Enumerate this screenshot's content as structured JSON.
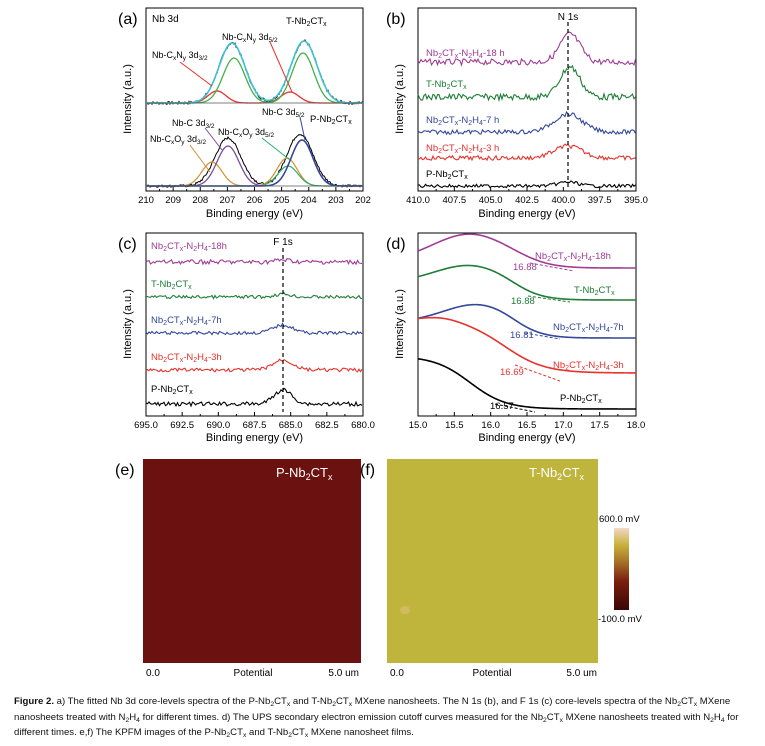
{
  "figure": {
    "panels": {
      "a": {
        "letter": "(a)",
        "title": "Nb 3d",
        "xlabel": "Binding energy (eV)",
        "ylabel": "Intensity (a.u.)",
        "xticks": [
          "210",
          "209",
          "208",
          "207",
          "206",
          "205",
          "204",
          "203",
          "202"
        ],
        "labels": {
          "tsample": "T-Nb2CTx",
          "psample": "P-Nb2CTx",
          "cn32": "Nb-CxNy 3d3/2",
          "cn52": "Nb-CxNy 3d5/2",
          "c32": "Nb-C 3d3/2",
          "c52": "Nb-C 3d5/2",
          "co32": "Nb-CxOy 3d3/2",
          "co52": "Nb-CxOy 3d5/2"
        }
      },
      "b": {
        "letter": "(b)",
        "peak": "N 1s",
        "xlabel": "Binding energy (eV)",
        "ylabel": "Intensity (a.u.)",
        "xticks": [
          "410.0",
          "407.5",
          "405.0",
          "402.5",
          "400.0",
          "397.5",
          "395.0"
        ],
        "series": [
          "Nb2CTx-N2H4-18 h",
          "T-Nb2CTx",
          "Nb2CTx-N2H4-7 h",
          "Nb2CTx-N2H4-3 h",
          "P-Nb2CTx"
        ]
      },
      "c": {
        "letter": "(c)",
        "peak": "F 1s",
        "xlabel": "Binding energy (eV)",
        "ylabel": "Intensity (a.u.)",
        "xticks": [
          "695.0",
          "692.5",
          "690.0",
          "687.5",
          "685.0",
          "682.5",
          "680.0"
        ],
        "series": [
          "Nb2CTx-N2H4-18h",
          "T-Nb2CTx",
          "Nb2CTx-N2H4-7h",
          "Nb2CTx-N2H4-3h",
          "P-Nb2CTx"
        ]
      },
      "d": {
        "letter": "(d)",
        "xlabel": "Binding energy (eV)",
        "ylabel": "Intensity (a.u.)",
        "xticks": [
          "15.0",
          "15.5",
          "16.0",
          "16.5",
          "17.0",
          "17.5",
          "18.0"
        ],
        "series": [
          "Nb2CTx-N2H4-18h",
          "T-Nb2CTx",
          "Nb2CTx-N2H4-7h",
          "Nb2CTx-N2H4-3h",
          "P-Nb2CTx"
        ],
        "cutoffs": [
          "16.88",
          "16.88",
          "16.81",
          "16.69",
          "16.57"
        ]
      },
      "e": {
        "letter": "(e)",
        "label": "P-Nb2CTx",
        "axis_start": "0.0",
        "axis_mid": "Potential",
        "axis_end": "5.0 um"
      },
      "f": {
        "letter": "(f)",
        "label": "T-Nb2CTx",
        "axis_start": "0.0",
        "axis_mid": "Potential",
        "axis_end": "5.0 um"
      }
    },
    "colorbar": {
      "max": "600.0 mV",
      "min": "-100.0 mV"
    },
    "colors": {
      "purple": "#a03c96",
      "green": "#1e7d36",
      "blue": "#33479c",
      "red": "#e8322c",
      "black": "#000000",
      "cyan": "#3fc3d2",
      "olive": "#c0b53c",
      "darkred": "#6b1210"
    }
  },
  "caption": {
    "label": "Figure 2.",
    "text": "a) The fitted Nb 3d core-levels spectra of the P-Nb2CTx and T-Nb2CTx MXene nanosheets. The N 1s (b), and F 1s (c) core-levels spectra of the Nb2CTx MXene nanosheets treated with N2H4 for different times. d) The UPS secondary electron emission cutoff curves measured for the Nb2CTx MXene nanosheets treated with N2H4 for different times. e,f) The KPFM images of the P-Nb2CTx and T-Nb2CTx MXene nanosheet films."
  }
}
